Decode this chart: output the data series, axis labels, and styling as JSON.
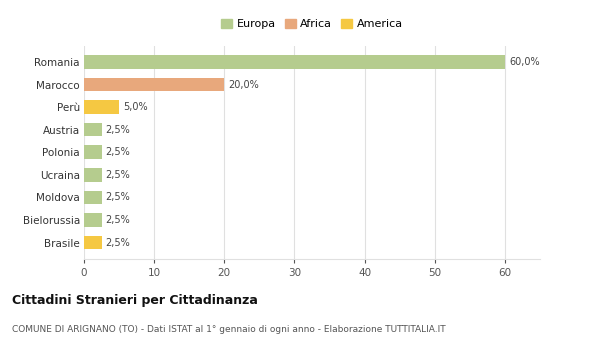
{
  "categories": [
    "Romania",
    "Marocco",
    "Perù",
    "Austria",
    "Polonia",
    "Ucraina",
    "Moldova",
    "Bielorussia",
    "Brasile"
  ],
  "values": [
    60.0,
    20.0,
    5.0,
    2.5,
    2.5,
    2.5,
    2.5,
    2.5,
    2.5
  ],
  "colors": [
    "#b5cc8e",
    "#e8a87c",
    "#f5c842",
    "#b5cc8e",
    "#b5cc8e",
    "#b5cc8e",
    "#b5cc8e",
    "#b5cc8e",
    "#f5c842"
  ],
  "labels": [
    "60,0%",
    "20,0%",
    "5,0%",
    "2,5%",
    "2,5%",
    "2,5%",
    "2,5%",
    "2,5%",
    "2,5%"
  ],
  "legend": [
    {
      "label": "Europa",
      "color": "#b5cc8e"
    },
    {
      "label": "Africa",
      "color": "#e8a87c"
    },
    {
      "label": "America",
      "color": "#f5c842"
    }
  ],
  "xlim": [
    0,
    65
  ],
  "xticks": [
    0,
    10,
    20,
    30,
    40,
    50,
    60
  ],
  "title": "Cittadini Stranieri per Cittadinanza",
  "subtitle": "COMUNE DI ARIGNANO (TO) - Dati ISTAT al 1° gennaio di ogni anno - Elaborazione TUTTITALIA.IT",
  "bg_color": "#ffffff",
  "grid_color": "#e0e0e0",
  "bar_height": 0.6
}
